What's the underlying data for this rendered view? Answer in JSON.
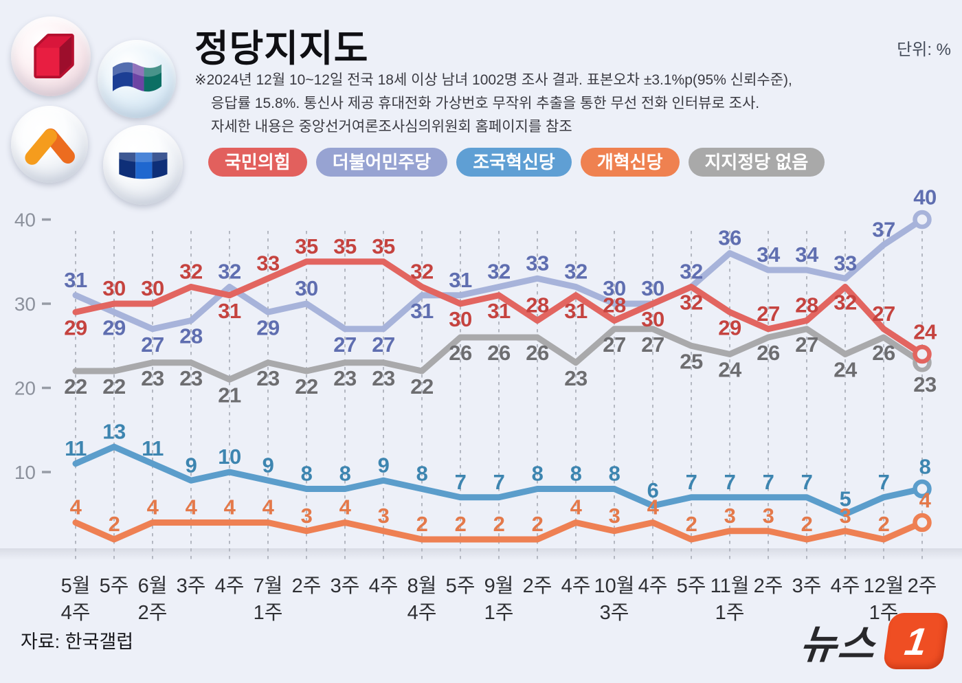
{
  "header": {
    "title": "정당지지도",
    "unit_label": "단위: %",
    "notes": [
      "※2024년 12월 10~12일 전국 18세 이상 남녀 1002명 조사 결과. 표본오차 ±3.1%p(95% 신뢰수준),",
      "응답률 15.8%. 통신사 제공 휴대전화 가상번호 무작위 추출을 통한 무선 전화 인터뷰로 조사.",
      "자세한 내용은 중앙선거여론조사심의위원회 홈페이지를 참조"
    ]
  },
  "legend": [
    {
      "label": "국민의힘",
      "color": "#e2605d"
    },
    {
      "label": "더불어민주당",
      "color": "#97a3d2"
    },
    {
      "label": "조국혁신당",
      "color": "#5f9fd4"
    },
    {
      "label": "개혁신당",
      "color": "#ef8150"
    },
    {
      "label": "지지정당 없음",
      "color": "#a9a9a9"
    }
  ],
  "chart_data": {
    "type": "line",
    "unit": "%",
    "title": "정당지지도",
    "y_axis": {
      "ticks": [
        40,
        30,
        20,
        10
      ],
      "min": 0,
      "max": 45,
      "grid": "vertical-dashed"
    },
    "legend_position": "top",
    "categories": [
      [
        "5월",
        "4주"
      ],
      [
        "5주"
      ],
      [
        "6월",
        "2주"
      ],
      [
        "3주"
      ],
      [
        "4주"
      ],
      [
        "7월",
        "1주"
      ],
      [
        "2주"
      ],
      [
        "3주"
      ],
      [
        "4주"
      ],
      [
        "8월",
        "4주"
      ],
      [
        "5주"
      ],
      [
        "9월",
        "1주"
      ],
      [
        "2주"
      ],
      [
        "4주"
      ],
      [
        "10월",
        "3주"
      ],
      [
        "4주"
      ],
      [
        "5주"
      ],
      [
        "11월",
        "1주"
      ],
      [
        "2주"
      ],
      [
        "3주"
      ],
      [
        "4주"
      ],
      [
        "12월",
        "1주"
      ],
      [
        "2주"
      ]
    ],
    "series": [
      {
        "name": "지지정당 없음",
        "line_color": "#a9a9ab",
        "label_color": "#6d6d70",
        "values": [
          22,
          22,
          23,
          23,
          21,
          23,
          22,
          23,
          23,
          22,
          26,
          26,
          26,
          23,
          27,
          27,
          25,
          24,
          26,
          27,
          24,
          26,
          23
        ],
        "sides": "b"
      },
      {
        "name": "더불어민주당",
        "line_color": "#a7b3da",
        "label_color": "#5f6eb0",
        "values": [
          31,
          29,
          27,
          28,
          32,
          29,
          30,
          27,
          27,
          31,
          31,
          32,
          33,
          32,
          30,
          30,
          32,
          36,
          34,
          34,
          33,
          37,
          40
        ],
        "sides": [
          "a",
          "b",
          "b",
          "b",
          "a",
          "b",
          "a",
          "b",
          "b",
          "b",
          "a",
          "a",
          "a",
          "a",
          "a",
          "a",
          "a",
          "a",
          "a",
          "a",
          "a",
          "a",
          "a"
        ]
      },
      {
        "name": "국민의힘",
        "line_color": "#e26560",
        "label_color": "#c5433f",
        "values": [
          29,
          30,
          30,
          32,
          31,
          33,
          35,
          35,
          35,
          32,
          30,
          31,
          28,
          31,
          28,
          30,
          32,
          29,
          27,
          28,
          32,
          27,
          24
        ],
        "sides": [
          "b",
          "a",
          "a",
          "a",
          "b",
          "a",
          "a",
          "a",
          "a",
          "a",
          "b",
          "b",
          "a",
          "b",
          "a",
          "b",
          "b",
          "b",
          "a",
          "a",
          "b",
          "a",
          "a"
        ]
      },
      {
        "name": "조국혁신당",
        "line_color": "#5b9dcb",
        "label_color": "#3d85b0",
        "values": [
          11,
          13,
          11,
          9,
          10,
          9,
          8,
          8,
          9,
          8,
          7,
          7,
          8,
          8,
          8,
          6,
          7,
          7,
          7,
          7,
          5,
          7,
          8
        ],
        "sides": "a"
      },
      {
        "name": "개혁신당",
        "line_color": "#ee8053",
        "label_color": "#e4794a",
        "values": [
          4,
          2,
          4,
          4,
          4,
          4,
          3,
          4,
          3,
          2,
          2,
          2,
          2,
          4,
          3,
          4,
          2,
          3,
          3,
          2,
          3,
          2,
          4
        ],
        "sides": "a"
      }
    ],
    "end_markers": true
  },
  "footer": {
    "source": "자료: 한국갤럽",
    "logo_text": "뉴스",
    "logo_badge": "1"
  }
}
